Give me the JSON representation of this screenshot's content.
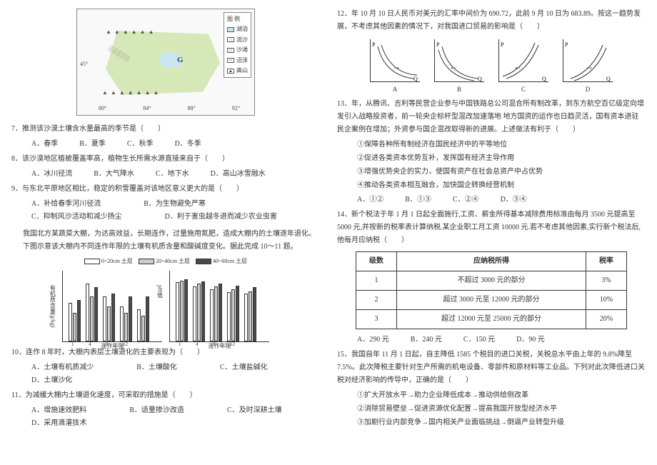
{
  "map": {
    "legend_title": "图 例",
    "legend_items": [
      "湖泊",
      "流沙",
      "沙滩",
      "沼泽",
      "高山"
    ],
    "lat_label": "45°",
    "big_label": "G",
    "lon_ticks": [
      "80°",
      "84°",
      "88°",
      "92°"
    ],
    "colors": {
      "land": "#d7e8b8",
      "lake": "#c9e6f0",
      "border": "#888888"
    }
  },
  "q7": {
    "text": "7．推测该沙漠土壤含水量最高的季节是（　　）",
    "opts": [
      "A．春季",
      "B．夏季",
      "C．秋季",
      "D．冬季"
    ]
  },
  "q8": {
    "text": "8．该沙漠地区植被覆盖率高，植物生长所需水源直接来自于（　　）",
    "opts": [
      "A．冰川径流",
      "B．大气降水",
      "C．地下水",
      "D．高山冰雪融水"
    ]
  },
  "q9": {
    "text": "9．与东北平原地区相比，稳定的积雪覆盖对该地区意义更大的是（　　）",
    "opts": [
      "A．补给春季河川径流",
      "B．为生物避免严寒",
      "C．抑制风沙活动和减少扬尘",
      "D．利于害虫越冬进而减少农业虫害"
    ]
  },
  "stem1011": "我国北方某蔬菜大棚，为达高效益，长期连作，过量施用氮肥，造成大棚内的土壤逐年退化。下图示意该大棚内不同连作年限的土壤有机质含量和酸碱度变化。据此完成 10～11 题。",
  "chart": {
    "legend": [
      "0~20cm 土层",
      "20~40cm 土层",
      "40~60cm 土层"
    ],
    "fills": [
      "#ffffff",
      "#cccccc",
      "#4a4a4a"
    ],
    "pattern": [
      "none",
      "none",
      "dots"
    ],
    "left": {
      "ylabel": "有机质含量(g/kg)",
      "xlabel": "连作年限",
      "xticks": [
        "1",
        "4",
        "8",
        "12",
        ""
      ],
      "series": {
        "0_20": [
          12,
          18,
          14,
          11,
          10
        ],
        "20_40": [
          9,
          14,
          11,
          9,
          8
        ],
        "40_60": [
          13,
          17,
          15,
          14,
          14
        ]
      },
      "ymax": 20
    },
    "right": {
      "ylabel": "pH值",
      "xlabel": "连作年限",
      "xticks": [
        "1",
        "4",
        "8",
        "12",
        ""
      ],
      "series": {
        "0_20": [
          7.4,
          6.9,
          6.5,
          6.2,
          6.0
        ],
        "20_40": [
          7.6,
          7.2,
          6.9,
          6.5,
          6.3
        ],
        "40_60": [
          7.8,
          7.5,
          7.2,
          7.0,
          6.8
        ]
      },
      "ymax": 8
    }
  },
  "q10": {
    "text": "10．连作 8 年时，大棚内表层土壤退化的主要表现为（　　）",
    "opts": [
      "A．土壤有机质减少",
      "B．土壤酸化",
      "C．土壤盐碱化",
      "D．土壤沙化"
    ]
  },
  "q11": {
    "text": "11．为减缓大棚内土壤退化速度，可采取的措施是（　　）",
    "opts": [
      "A．增施速效肥料",
      "B．适量掺沙改造",
      "C．及时深耕土壤",
      "D．采用滴灌技术"
    ]
  },
  "q12": {
    "text": "12．年 10 月 10 日人民币对美元的汇率中间价为 690.72，此前 9 月 10 日为 683.89。按这一趋势发展，不考虑其他因素的情况下，对我国进口贸易的影响是（　　）",
    "curve_labels": [
      "A",
      "B",
      "C",
      "D"
    ],
    "axes": {
      "x": "Q",
      "y": "P"
    }
  },
  "q13": {
    "text": "13．年，从腾讯、吉利等民营企业参与中国铁路总公司混合所有制改革，到东方航空百亿级定向增发引入战略投资者，前一轮央企标杆型混改加速落地 地方国资的运作也日趋灵活，国有资本进驻民企案例在增加；外资参与国企混改取得新的进展。上述做法有利于（　　）",
    "circled": [
      "①保障各种所有制经济在国民经济中的平等地位",
      "②促进各类资本优势互补，发挥国有经济主导作用",
      "③增强优势央企的实力，使国有资产在社会总资产中占优势",
      "④推动各类资本相互融合，加快国企转换经营机制"
    ],
    "opts": [
      "A．①②",
      "B．①③",
      "C．②④",
      "D．③④"
    ]
  },
  "q14": {
    "text": "14．新个税法于年 1 月 1 日起全面施行,工资、薪金所得基本减除费用标准由每月 3500 元提高至 5000 元,并按新的税率表计算纳税.某企业职工月工资 10000 元.若不考虑其他因素,实行新个税法后,他每月应纳税（　　）",
    "table": {
      "headers": [
        "级数",
        "应纳税所得",
        "税率"
      ],
      "rows": [
        [
          "1",
          "不超过 3000 元的部分",
          "3%"
        ],
        [
          "2",
          "超过 3000 元至 12000 元的部分",
          "10%"
        ],
        [
          "3",
          "超过 12000 元至 25000 元的部分",
          "20%"
        ]
      ]
    },
    "opts": [
      "A．290 元",
      "B．240 元",
      "C．150 元",
      "D．90 元"
    ]
  },
  "q15": {
    "text": "15．我国自年 11 月 1 日起，自主降低 1585 个税目的进口关税，关税总水平由上年的 9.8%降至 7.5%。此次降税主要针对生产所需的机电设备、零部件和原材料等工业品。下列对此次降低进口关税对经济影响的传导中，正确的是（　　）",
    "circled": [
      "①扩大开放水平→助力企业降低成本→推动供给侧改革",
      "②消除贸易壁垒→促进资源优化配置→提高我国开放型经济水平",
      "③加剧行业内部竞争→国内相关产业面临挑战→倒逼产业转型升级"
    ]
  }
}
